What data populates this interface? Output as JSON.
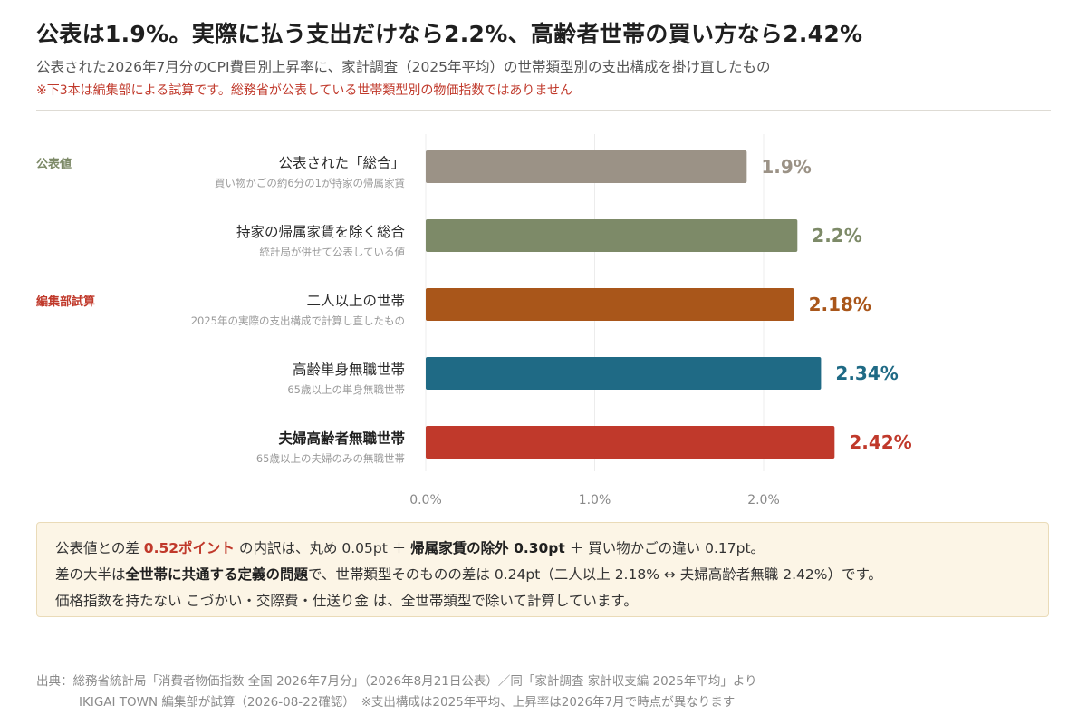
{
  "header": {
    "title": "公表は1.9%。実際に払う支出だけなら2.2%、高齢者世帯の買い方なら2.42%",
    "subtitle": "公表された2026年7月分のCPI費目別上昇率に、家計調査（2025年平均）の世帯類型別の支出構成を掛け直したもの",
    "note": "※下3本は編集部による試算です。総務省が公表している世帯類型別の物価指数ではありません"
  },
  "chart_data": {
    "type": "bar",
    "orientation": "horizontal",
    "xlim": [
      0,
      2.5
    ],
    "xticks": [
      "0.0%",
      "1.0%",
      "2.0%"
    ],
    "grid": true,
    "groups": [
      {
        "label": "公表値",
        "color": "#7d8a68",
        "first_index": 0
      },
      {
        "label": "編集部試算",
        "color": "#c0392b",
        "first_index": 2
      }
    ],
    "bars": [
      {
        "label": "公表された「総合」",
        "sublabel": "買い物かごの約6分の1が持家の帰属家賃",
        "value": 1.9,
        "value_label": "1.9%",
        "color": "#9b9286",
        "bold": false
      },
      {
        "label": "持家の帰属家賃を除く総合",
        "sublabel": "統計局が併せて公表している値",
        "value": 2.2,
        "value_label": "2.2%",
        "color": "#7d8a68",
        "bold": false
      },
      {
        "label": "二人以上の世帯",
        "sublabel": "2025年の実際の支出構成で計算し直したもの",
        "value": 2.18,
        "value_label": "2.18%",
        "color": "#a9561a",
        "bold": false
      },
      {
        "label": "高齢単身無職世帯",
        "sublabel": "65歳以上の単身無職世帯",
        "value": 2.34,
        "value_label": "2.34%",
        "color": "#1f6a85",
        "bold": false
      },
      {
        "label": "夫婦高齢者無職世帯",
        "sublabel": "65歳以上の夫婦のみの無職世帯",
        "value": 2.42,
        "value_label": "2.42%",
        "color": "#c0392b",
        "bold": true
      }
    ]
  },
  "summary": {
    "l1_a": "公表値との差 ",
    "l1_diff": "0.52ポイント",
    "l1_b": " の内訳は、丸め 0.05pt ＋ ",
    "l1_c": "帰属家賃の除外 0.30pt",
    "l1_d": " ＋ 買い物かごの違い 0.17pt。",
    "l2_a": "差の大半は",
    "l2_b": "全世帯に共通する定義の問題",
    "l2_c": "で、世帯類型そのものの差は 0.24pt（二人以上 2.18% ↔ 夫婦高齢者無職 2.42%）です。",
    "l3": "価格指数を持たない こづかい・交際費・仕送り金 は、全世帯類型で除いて計算しています。"
  },
  "source": {
    "line1": "出典：総務省統計局「消費者物価指数 全国 2026年7月分」（2026年8月21日公表）／同「家計調査 家計収支編 2025年平均」より",
    "line2": "IKIGAI TOWN 編集部が試算（2026-08-22確認）　※支出構成は2025年平均、上昇率は2026年7月で時点が異なります"
  }
}
